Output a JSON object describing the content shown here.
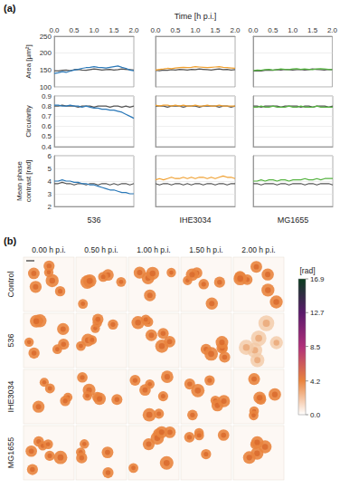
{
  "panel_labels": [
    "(a)",
    "(b)"
  ],
  "chart_data": [
    {
      "type": "line",
      "ylabel": "Area [µm²]",
      "tick_labels": true,
      "x": [
        0,
        0.1,
        0.2,
        0.3,
        0.4,
        0.5,
        0.6,
        0.7,
        0.8,
        0.9,
        1.0,
        1.1,
        1.2,
        1.3,
        1.4,
        1.5,
        1.6,
        1.7,
        1.8,
        1.9,
        2.0
      ],
      "xlim": [
        0,
        2
      ],
      "xticks": [
        {
          "value": 0,
          "label": "0.0"
        },
        0.5,
        {
          "value": 1,
          "label": "1.0"
        },
        1.5,
        {
          "value": 2,
          "label": "2.0"
        }
      ],
      "ylim": [
        100,
        250
      ],
      "yticks": [
        100,
        150,
        200,
        250
      ],
      "grid": true,
      "series": [
        {
          "color": "#555555",
          "values": [
            148,
            147,
            149,
            150,
            148,
            151,
            152,
            150,
            149,
            151,
            153,
            152,
            150,
            151,
            152,
            150,
            151,
            153,
            152,
            151,
            150
          ]
        },
        {
          "color": "#2a78b8",
          "values": [
            140,
            142,
            145,
            143,
            147,
            150,
            152,
            155,
            157,
            158,
            160,
            158,
            157,
            156,
            158,
            160,
            162,
            158,
            155,
            150,
            148
          ]
        }
      ]
    },
    {
      "type": "line",
      "xlabel": "Time [h p.i.]",
      "tick_labels": "x",
      "x": [
        0,
        0.1,
        0.2,
        0.3,
        0.4,
        0.5,
        0.6,
        0.7,
        0.8,
        0.9,
        1.0,
        1.1,
        1.2,
        1.3,
        1.4,
        1.5,
        1.6,
        1.7,
        1.8,
        1.9,
        2.0
      ],
      "xlim": [
        0,
        2
      ],
      "xticks": [
        {
          "value": 0,
          "label": "0.0"
        },
        0.5,
        {
          "value": 1,
          "label": "1.0"
        },
        1.5,
        {
          "value": 2,
          "label": "2.0"
        }
      ],
      "ylim": [
        100,
        250
      ],
      "yticks": [
        100,
        150,
        200,
        250
      ],
      "grid": true,
      "series": [
        {
          "color": "#555555",
          "values": [
            149,
            148,
            150,
            149,
            151,
            150,
            152,
            151,
            150,
            152,
            151,
            153,
            152,
            151,
            150,
            152,
            153,
            151,
            152,
            150,
            151
          ]
        },
        {
          "color": "#f0a030",
          "values": [
            150,
            152,
            153,
            155,
            154,
            156,
            157,
            158,
            157,
            158,
            160,
            159,
            158,
            157,
            158,
            159,
            160,
            158,
            157,
            156,
            155
          ]
        }
      ]
    },
    {
      "type": "line",
      "tick_labels": "x",
      "x": [
        0,
        0.1,
        0.2,
        0.3,
        0.4,
        0.5,
        0.6,
        0.7,
        0.8,
        0.9,
        1.0,
        1.1,
        1.2,
        1.3,
        1.4,
        1.5,
        1.6,
        1.7,
        1.8,
        1.9,
        2.0
      ],
      "xlim": [
        0,
        2
      ],
      "xticks": [
        {
          "value": 0,
          "label": "0.0"
        },
        0.5,
        {
          "value": 1,
          "label": "1.0"
        },
        1.5,
        {
          "value": 2,
          "label": "2.0"
        }
      ],
      "ylim": [
        100,
        250
      ],
      "yticks": [
        100,
        150,
        200,
        250
      ],
      "grid": true,
      "series": [
        {
          "color": "#555555",
          "values": [
            147,
            148,
            147,
            149,
            150,
            149,
            151,
            150,
            152,
            151,
            150,
            151,
            152,
            150,
            151,
            153,
            152,
            151,
            150,
            152,
            151
          ]
        },
        {
          "color": "#55b340",
          "values": [
            148,
            150,
            149,
            151,
            152,
            150,
            151,
            153,
            152,
            151,
            153,
            154,
            152,
            153,
            152,
            151,
            153,
            154,
            153,
            152,
            151
          ]
        }
      ]
    },
    {
      "type": "line",
      "ylabel": "Circularity",
      "tick_labels": "y",
      "x": [
        0,
        0.1,
        0.2,
        0.3,
        0.4,
        0.5,
        0.6,
        0.7,
        0.8,
        0.9,
        1.0,
        1.1,
        1.2,
        1.3,
        1.4,
        1.5,
        1.6,
        1.7,
        1.8,
        1.9,
        2.0
      ],
      "xlim": [
        0,
        2
      ],
      "xticks": [
        {
          "value": 0,
          "label": "0.0"
        },
        0.5,
        {
          "value": 1,
          "label": "1.0"
        },
        1.5,
        {
          "value": 2,
          "label": "2.0"
        }
      ],
      "ylim": [
        0.4,
        0.9
      ],
      "yticks": [
        0.4,
        0.5,
        0.6,
        0.7,
        0.8,
        0.9
      ],
      "grid": true,
      "series": [
        {
          "color": "#555555",
          "values": [
            0.8,
            0.8,
            0.81,
            0.8,
            0.8,
            0.8,
            0.79,
            0.8,
            0.8,
            0.8,
            0.79,
            0.8,
            0.8,
            0.8,
            0.79,
            0.8,
            0.8,
            0.79,
            0.8,
            0.79,
            0.8
          ]
        },
        {
          "color": "#2a78b8",
          "values": [
            0.81,
            0.81,
            0.8,
            0.8,
            0.81,
            0.8,
            0.8,
            0.79,
            0.8,
            0.79,
            0.78,
            0.78,
            0.77,
            0.77,
            0.76,
            0.76,
            0.75,
            0.74,
            0.72,
            0.7,
            0.68
          ]
        }
      ]
    },
    {
      "type": "line",
      "tick_labels": false,
      "x": [
        0,
        0.1,
        0.2,
        0.3,
        0.4,
        0.5,
        0.6,
        0.7,
        0.8,
        0.9,
        1.0,
        1.1,
        1.2,
        1.3,
        1.4,
        1.5,
        1.6,
        1.7,
        1.8,
        1.9,
        2.0
      ],
      "xlim": [
        0,
        2
      ],
      "xticks": [
        {
          "value": 0,
          "label": "0.0"
        },
        0.5,
        {
          "value": 1,
          "label": "1.0"
        },
        1.5,
        {
          "value": 2,
          "label": "2.0"
        }
      ],
      "ylim": [
        0.4,
        0.9
      ],
      "yticks": [
        0.4,
        0.5,
        0.6,
        0.7,
        0.8,
        0.9
      ],
      "grid": true,
      "series": [
        {
          "color": "#555555",
          "values": [
            0.8,
            0.8,
            0.8,
            0.79,
            0.8,
            0.8,
            0.8,
            0.79,
            0.8,
            0.8,
            0.8,
            0.79,
            0.8,
            0.8,
            0.8,
            0.8,
            0.79,
            0.8,
            0.8,
            0.79,
            0.8
          ]
        },
        {
          "color": "#f0a030",
          "values": [
            0.81,
            0.8,
            0.81,
            0.81,
            0.8,
            0.81,
            0.8,
            0.81,
            0.8,
            0.8,
            0.81,
            0.8,
            0.8,
            0.81,
            0.8,
            0.8,
            0.81,
            0.8,
            0.8,
            0.8,
            0.8
          ]
        }
      ]
    },
    {
      "type": "line",
      "tick_labels": false,
      "x": [
        0,
        0.1,
        0.2,
        0.3,
        0.4,
        0.5,
        0.6,
        0.7,
        0.8,
        0.9,
        1.0,
        1.1,
        1.2,
        1.3,
        1.4,
        1.5,
        1.6,
        1.7,
        1.8,
        1.9,
        2.0
      ],
      "xlim": [
        0,
        2
      ],
      "xticks": [
        {
          "value": 0,
          "label": "0.0"
        },
        0.5,
        {
          "value": 1,
          "label": "1.0"
        },
        1.5,
        {
          "value": 2,
          "label": "2.0"
        }
      ],
      "ylim": [
        0.4,
        0.9
      ],
      "yticks": [
        0.4,
        0.5,
        0.6,
        0.7,
        0.8,
        0.9
      ],
      "grid": true,
      "series": [
        {
          "color": "#555555",
          "values": [
            0.8,
            0.8,
            0.79,
            0.8,
            0.8,
            0.8,
            0.8,
            0.79,
            0.8,
            0.8,
            0.8,
            0.8,
            0.79,
            0.8,
            0.8,
            0.79,
            0.8,
            0.8,
            0.8,
            0.79,
            0.8
          ]
        },
        {
          "color": "#55b340",
          "values": [
            0.79,
            0.79,
            0.8,
            0.79,
            0.79,
            0.8,
            0.79,
            0.79,
            0.79,
            0.8,
            0.79,
            0.79,
            0.8,
            0.79,
            0.79,
            0.79,
            0.8,
            0.79,
            0.79,
            0.79,
            0.79
          ]
        }
      ]
    },
    {
      "type": "line",
      "ylabel": "Mean phase\ncontrast [rad]",
      "xlabel": "536",
      "tick_labels": "y",
      "x": [
        0,
        0.1,
        0.2,
        0.3,
        0.4,
        0.5,
        0.6,
        0.7,
        0.8,
        0.9,
        1.0,
        1.1,
        1.2,
        1.3,
        1.4,
        1.5,
        1.6,
        1.7,
        1.8,
        1.9,
        2.0
      ],
      "xlim": [
        0,
        2
      ],
      "xticks": [
        {
          "value": 0,
          "label": "0.0"
        },
        0.5,
        {
          "value": 1,
          "label": "1.0"
        },
        1.5,
        {
          "value": 2,
          "label": "2.0"
        }
      ],
      "ylim": [
        2,
        6
      ],
      "yticks": [
        2,
        3,
        4,
        5,
        6
      ],
      "grid": true,
      "series": [
        {
          "color": "#555555",
          "values": [
            3.8,
            3.8,
            3.9,
            3.8,
            3.8,
            3.7,
            3.8,
            3.8,
            3.7,
            3.8,
            3.8,
            3.7,
            3.8,
            3.8,
            3.7,
            3.8,
            3.7,
            3.8,
            3.8,
            3.7,
            3.8
          ]
        },
        {
          "color": "#2a78b8",
          "values": [
            4.0,
            4.0,
            4.1,
            4.0,
            4.0,
            3.9,
            3.9,
            3.8,
            3.8,
            3.7,
            3.7,
            3.6,
            3.5,
            3.4,
            3.3,
            3.3,
            3.2,
            3.1,
            3.1,
            3.0,
            3.0
          ]
        }
      ]
    },
    {
      "type": "line",
      "xlabel": "IHE3034",
      "tick_labels": false,
      "x": [
        0,
        0.1,
        0.2,
        0.3,
        0.4,
        0.5,
        0.6,
        0.7,
        0.8,
        0.9,
        1.0,
        1.1,
        1.2,
        1.3,
        1.4,
        1.5,
        1.6,
        1.7,
        1.8,
        1.9,
        2.0
      ],
      "xlim": [
        0,
        2
      ],
      "xticks": [
        {
          "value": 0,
          "label": "0.0"
        },
        0.5,
        {
          "value": 1,
          "label": "1.0"
        },
        1.5,
        {
          "value": 2,
          "label": "2.0"
        }
      ],
      "ylim": [
        2,
        6
      ],
      "yticks": [
        2,
        3,
        4,
        5,
        6
      ],
      "grid": true,
      "series": [
        {
          "color": "#555555",
          "values": [
            3.8,
            3.7,
            3.8,
            3.8,
            3.7,
            3.8,
            3.8,
            3.7,
            3.8,
            3.7,
            3.8,
            3.8,
            3.7,
            3.8,
            3.8,
            3.7,
            3.8,
            3.8,
            3.7,
            3.8,
            3.8
          ]
        },
        {
          "color": "#f0a030",
          "values": [
            4.1,
            4.2,
            4.1,
            4.2,
            4.3,
            4.2,
            4.2,
            4.3,
            4.2,
            4.3,
            4.2,
            4.3,
            4.3,
            4.2,
            4.3,
            4.2,
            4.3,
            4.4,
            4.3,
            4.3,
            4.2
          ]
        }
      ]
    },
    {
      "type": "line",
      "xlabel": "MG1655",
      "tick_labels": false,
      "x": [
        0,
        0.1,
        0.2,
        0.3,
        0.4,
        0.5,
        0.6,
        0.7,
        0.8,
        0.9,
        1.0,
        1.1,
        1.2,
        1.3,
        1.4,
        1.5,
        1.6,
        1.7,
        1.8,
        1.9,
        2.0
      ],
      "xlim": [
        0,
        2
      ],
      "xticks": [
        {
          "value": 0,
          "label": "0.0"
        },
        0.5,
        {
          "value": 1,
          "label": "1.0"
        },
        1.5,
        {
          "value": 2,
          "label": "2.0"
        }
      ],
      "ylim": [
        2,
        6
      ],
      "yticks": [
        2,
        3,
        4,
        5,
        6
      ],
      "grid": true,
      "series": [
        {
          "color": "#555555",
          "values": [
            3.8,
            3.8,
            3.7,
            3.8,
            3.8,
            3.8,
            3.7,
            3.8,
            3.8,
            3.7,
            3.8,
            3.8,
            3.8,
            3.7,
            3.8,
            3.8,
            3.7,
            3.8,
            3.8,
            3.8,
            3.7
          ]
        },
        {
          "color": "#55b340",
          "values": [
            4.0,
            4.0,
            4.1,
            4.0,
            4.1,
            4.1,
            4.0,
            4.1,
            4.1,
            4.0,
            4.1,
            4.1,
            4.1,
            4.2,
            4.1,
            4.1,
            4.2,
            4.1,
            4.2,
            4.2,
            4.2
          ]
        }
      ]
    }
  ],
  "panel_b": {
    "type": "image_grid",
    "columns": [
      "0.00 h p.i.",
      "0.50 h p.i.",
      "1.00 h p.i.",
      "1.50 h p.i.",
      "2.00 h p.i."
    ],
    "rows": [
      "Control",
      "536",
      "IHE3034",
      "MG1655"
    ],
    "colorbar": {
      "label": "[rad]",
      "range": [
        0,
        16.9
      ],
      "ticks": [
        {
          "value": 0,
          "label": "0.0"
        },
        4.2,
        8.5,
        12.7,
        16.9
      ]
    }
  }
}
